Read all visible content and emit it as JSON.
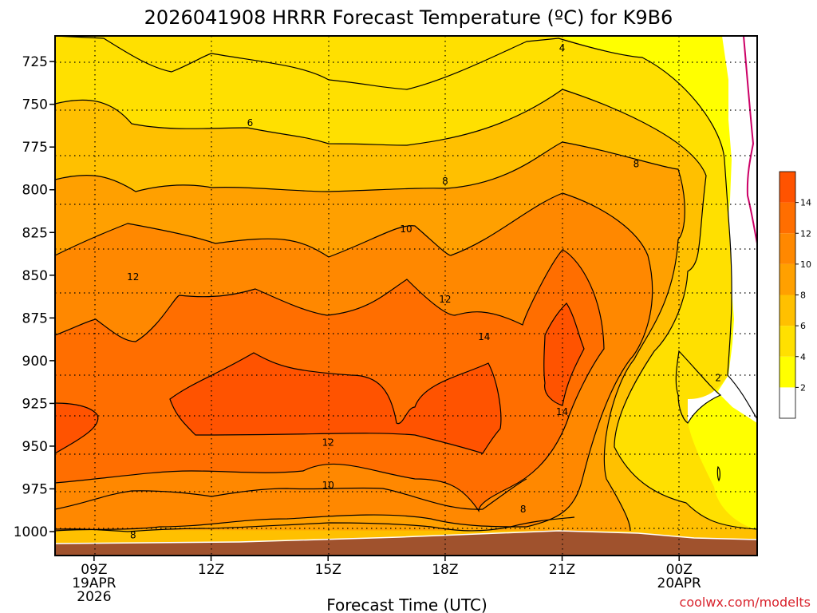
{
  "chart_data": {
    "type": "contour",
    "title": "2026041908 HRRR Forecast Temperature (ºC) for K9B6",
    "xlabel": "Forecast Time (UTC)",
    "ylabel": "",
    "watermark": "coolwx.com/modelts",
    "x_ticks": [
      {
        "hour": 9,
        "lines": [
          "09Z",
          "19APR",
          "2026"
        ]
      },
      {
        "hour": 12,
        "lines": [
          "12Z"
        ]
      },
      {
        "hour": 15,
        "lines": [
          "15Z"
        ]
      },
      {
        "hour": 18,
        "lines": [
          "18Z"
        ]
      },
      {
        "hour": 21,
        "lines": [
          "21Z"
        ]
      },
      {
        "hour": 24,
        "lines": [
          "00Z",
          "20APR"
        ]
      }
    ],
    "xlim": [
      8,
      26
    ],
    "y_ticks": [
      725,
      750,
      775,
      800,
      825,
      850,
      875,
      900,
      925,
      950,
      975,
      1000
    ],
    "ylim": [
      1014,
      710
    ],
    "y_unit": "hPa",
    "colorbar": {
      "levels": [
        2,
        4,
        6,
        8,
        10,
        12,
        14
      ],
      "colors": [
        "#ffffff",
        "#ffff00",
        "#ffe000",
        "#ffc000",
        "#ffa000",
        "#ff8800",
        "#ff6e00",
        "#ff5300"
      ]
    },
    "contour_labels": [
      {
        "text": "4",
        "hour": 21.0,
        "p": 717
      },
      {
        "text": "6",
        "hour": 13.0,
        "p": 761
      },
      {
        "text": "8",
        "hour": 18.0,
        "p": 795
      },
      {
        "text": "8",
        "hour": 22.9,
        "p": 785
      },
      {
        "text": "10",
        "hour": 17.0,
        "p": 823
      },
      {
        "text": "12",
        "hour": 10.0,
        "p": 851
      },
      {
        "text": "12",
        "hour": 18.0,
        "p": 864
      },
      {
        "text": "14",
        "hour": 19.0,
        "p": 886
      },
      {
        "text": "14",
        "hour": 21.0,
        "p": 930
      },
      {
        "text": "12",
        "hour": 15.0,
        "p": 948
      },
      {
        "text": "10",
        "hour": 15.0,
        "p": 973
      },
      {
        "text": "8",
        "hour": 10.0,
        "p": 1002
      },
      {
        "text": "8",
        "hour": 20.0,
        "p": 987
      },
      {
        "text": "2",
        "hour": 25.0,
        "p": 910
      }
    ]
  }
}
